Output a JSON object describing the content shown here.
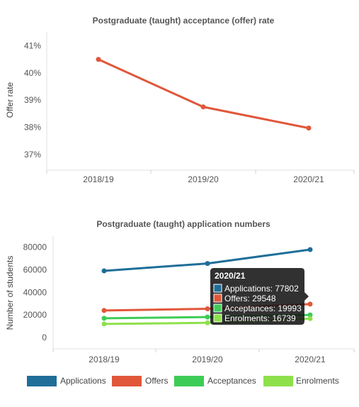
{
  "chart_data": [
    {
      "type": "line",
      "title": "Postgraduate (taught) acceptance (offer) rate",
      "ylabel": "Offer rate",
      "xlabel": "",
      "categories": [
        "2018/19",
        "2019/20",
        "2020/21"
      ],
      "series": [
        {
          "values": [
            40.5,
            38.75,
            37.97
          ],
          "color": "#e0573a"
        }
      ],
      "ylim": [
        36.5,
        41.5
      ],
      "yticks": [
        "37%",
        "38%",
        "39%",
        "40%",
        "41%"
      ],
      "grid": false
    },
    {
      "type": "line",
      "title": "Postgraduate (taught) application numbers",
      "ylabel": "Number of students",
      "xlabel": "",
      "categories": [
        "2018/19",
        "2019/20",
        "2020/21"
      ],
      "series": [
        {
          "name": "Applications",
          "values": [
            59000,
            65500,
            77802
          ],
          "color": "#1f6e99"
        },
        {
          "name": "Offers",
          "values": [
            23900,
            25400,
            29548
          ],
          "color": "#e0573a"
        },
        {
          "name": "Acceptances",
          "values": [
            17000,
            18100,
            19993
          ],
          "color": "#3dcc55"
        },
        {
          "name": "Enrolments",
          "values": [
            12000,
            13000,
            16739
          ],
          "color": "#8ee04b"
        }
      ],
      "ylim": [
        -8000,
        90000
      ],
      "yticks": [
        "0",
        "20000",
        "40000",
        "60000",
        "80000"
      ],
      "legend": "bottom",
      "grid": false,
      "tooltip": {
        "title": "2020/21",
        "lines": [
          "Applications: 77802",
          "Offers: 29548",
          "Acceptances: 19993",
          "Enrolments: 16739"
        ]
      }
    }
  ]
}
